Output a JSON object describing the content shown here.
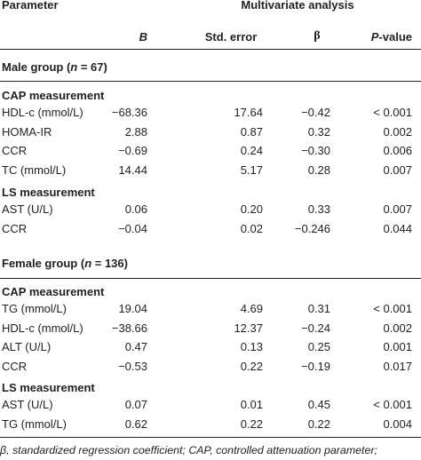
{
  "header": {
    "parameter": "Parameter",
    "analysis": "Multivariate analysis",
    "col_b": "B",
    "col_se": "Std. error",
    "col_beta": "β",
    "col_p_italic": "P",
    "col_p_rest": "-value"
  },
  "male_group": {
    "prefix": "Male group (",
    "n": "n",
    "suffix": " = 67)"
  },
  "female_group": {
    "prefix": "Female group (",
    "n": "n",
    "suffix": " = 136)"
  },
  "sections": {
    "male_cap": "CAP measurement",
    "male_ls": "LS measurement",
    "female_cap": "CAP measurement",
    "female_ls": "LS measurement"
  },
  "rows": {
    "male_cap": [
      [
        "HDL-c (mmol/L)",
        "−68.36",
        "17.64",
        "−0.42",
        "< 0.001"
      ],
      [
        "HOMA-IR",
        "2.88",
        "0.87",
        "0.32",
        "0.002"
      ],
      [
        "CCR",
        "−0.69",
        "0.24",
        "−0.30",
        "0.006"
      ],
      [
        "TC (mmol/L)",
        "14.44",
        "5.17",
        "0.28",
        "0.007"
      ]
    ],
    "male_ls": [
      [
        "AST (U/L)",
        "0.06",
        "0.20",
        "0.33",
        "0.007"
      ],
      [
        "CCR",
        "−0.04",
        "0.02",
        "−0.246",
        "0.044"
      ]
    ],
    "female_cap": [
      [
        "TG (mmol/L)",
        "19.04",
        "4.69",
        "0.31",
        "< 0.001"
      ],
      [
        "HDL-c (mmol/L)",
        "−38.66",
        "12.37",
        "−0.24",
        "0.002"
      ],
      [
        "ALT (U/L)",
        "0.47",
        "0.13",
        "0.25",
        "0.001"
      ],
      [
        "CCR",
        "−0.53",
        "0.22",
        "−0.19",
        "0.017"
      ]
    ],
    "female_ls": [
      [
        "AST (U/L)",
        "0.07",
        "0.01",
        "0.45",
        "< 0.001"
      ],
      [
        "TG (mmol/L)",
        "0.62",
        "0.22",
        "0.22",
        "0.004"
      ]
    ]
  },
  "footnote": "β,  standardized  regression  coefficient;  CAP,  controlled  attenuation  parameter;"
}
